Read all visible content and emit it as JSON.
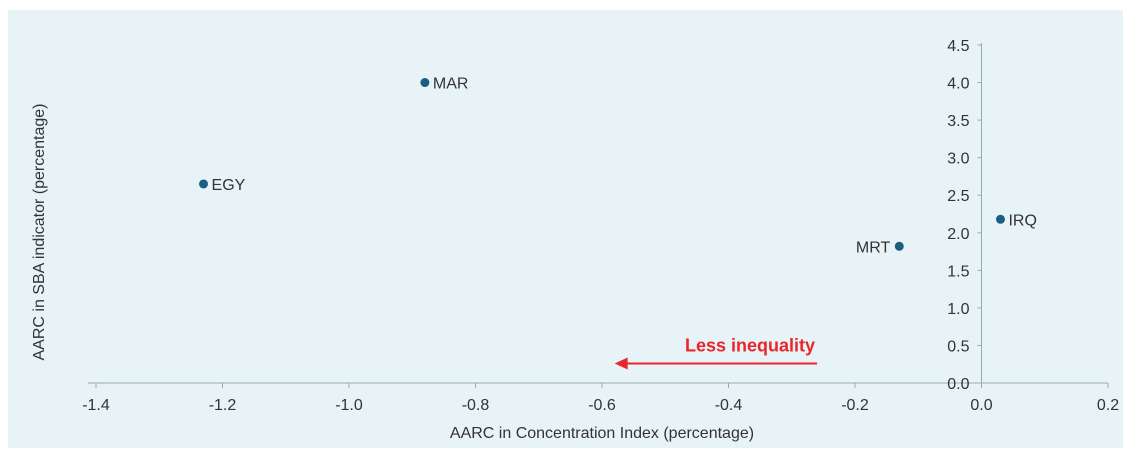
{
  "chart_data": {
    "type": "scatter",
    "title": "",
    "xlabel": "AARC in Concentration Index (percentage)",
    "ylabel": "AARC in SBA indicator (percentage)",
    "xlim": [
      -1.4,
      0.2
    ],
    "ylim": [
      0.0,
      4.5
    ],
    "x_ticks": [
      "-1.4",
      "-1.2",
      "-1.0",
      "-0.8",
      "-0.6",
      "-0.4",
      "-0.2",
      "0.0",
      "0.2"
    ],
    "y_ticks": [
      "0.0",
      "0.5",
      "1.0",
      "1.5",
      "2.0",
      "2.5",
      "3.0",
      "3.5",
      "4.0",
      "4.5"
    ],
    "points": [
      {
        "label": "MAR",
        "x": -0.88,
        "y": 4.0
      },
      {
        "label": "EGY",
        "x": -1.23,
        "y": 2.65
      },
      {
        "label": "IRQ",
        "x": 0.03,
        "y": 2.18
      },
      {
        "label": "MRT",
        "x": -0.13,
        "y": 1.82
      }
    ],
    "annotation": {
      "text": "Less inequality",
      "color": "#e8262b",
      "arrow_from_x": -0.26,
      "arrow_to_x": -0.58,
      "y": 0.42
    },
    "colors": {
      "point": "#1a5f80",
      "axis": "#9aa8b0",
      "background": "#e8f3f8"
    }
  }
}
